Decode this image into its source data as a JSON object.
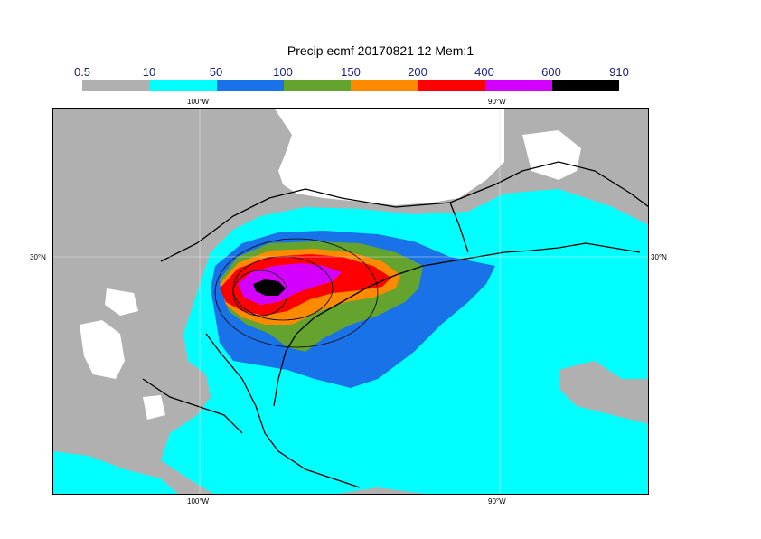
{
  "title": "Precip ecmf 20170821 12 Mem:1",
  "legend": {
    "levels": [
      "0.5",
      "10",
      "50",
      "100",
      "150",
      "200",
      "400",
      "600",
      "910"
    ],
    "colors": [
      "#b0b0b0",
      "#00ffff",
      "#1a72e8",
      "#64a32e",
      "#ff8a00",
      "#ff0000",
      "#d400ff",
      "#000000"
    ]
  },
  "axes": {
    "top_lon_labels": [
      "100°W",
      "90°W"
    ],
    "bottom_lon_labels": [
      "100°W",
      "90°W"
    ],
    "left_lat_label": "30°N",
    "right_lat_label": "30°N"
  },
  "colors": {
    "land_gray": "#b0b0b0",
    "white": "#ffffff",
    "coast": "#000000"
  }
}
